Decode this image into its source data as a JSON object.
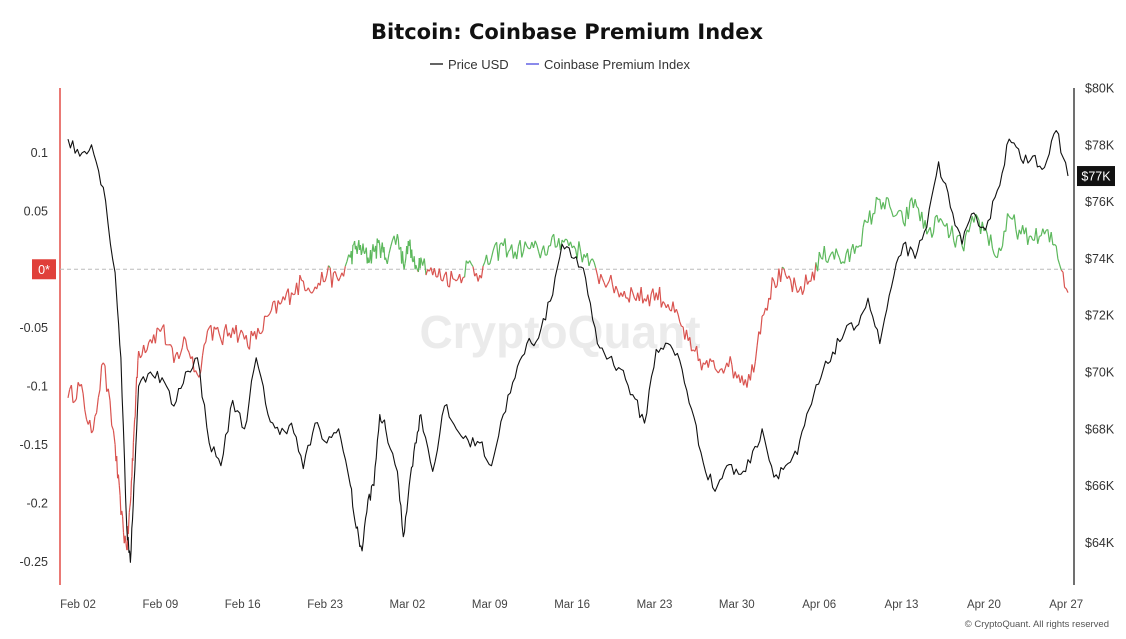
{
  "chart_data": {
    "type": "line",
    "title": "Bitcoin: Coinbase Premium Index",
    "legend": {
      "placement": "top-center",
      "items": [
        "Price USD",
        "Coinbase Premium Index"
      ]
    },
    "x_ticks": [
      "Feb 02",
      "Feb 09",
      "Feb 16",
      "Feb 23",
      "Mar 02",
      "Mar 09",
      "Mar 16",
      "Mar 23",
      "Mar 30",
      "Apr 06",
      "Apr 13",
      "Apr 20",
      "Apr 27"
    ],
    "x_range": [
      "Feb 02",
      "Apr 28"
    ],
    "y_left": {
      "ticks": [
        "0.1",
        "0.05",
        "0*",
        "-0.05",
        "-0.1",
        "-0.15",
        "-0.2",
        "-0.25"
      ],
      "tick_values": [
        0.1,
        0.05,
        0,
        -0.05,
        -0.1,
        -0.15,
        -0.2,
        -0.25
      ],
      "range": [
        -0.27,
        0.155
      ]
    },
    "y_right": {
      "ticks": [
        "$80K",
        "$78K",
        "$76K",
        "$74K",
        "$72K",
        "$70K",
        "$68K",
        "$66K",
        "$64K"
      ],
      "tick_values": [
        80000,
        78000,
        76000,
        74000,
        72000,
        70000,
        68000,
        66000,
        64000
      ],
      "range": [
        62500,
        80000
      ],
      "current_label": "$77K",
      "current_value": 76900
    },
    "grid": false,
    "zero_line": "dashed",
    "series": [
      {
        "name": "Price USD",
        "axis": "right",
        "color": "#111111",
        "points": [
          [
            "Feb 02",
            78200
          ],
          [
            "Feb 03",
            77600
          ],
          [
            "Feb 04",
            78000
          ],
          [
            "Feb 05",
            76500
          ],
          [
            "Feb 06",
            73500
          ],
          [
            "Feb 06.5",
            70500
          ],
          [
            "Feb 07",
            64500
          ],
          [
            "Feb 07.3",
            63300
          ],
          [
            "Feb 07.6",
            66000
          ],
          [
            "Feb 08",
            69500
          ],
          [
            "Feb 09",
            70000
          ],
          [
            "Feb 10",
            69800
          ],
          [
            "Feb 11",
            68800
          ],
          [
            "Feb 12",
            70000
          ],
          [
            "Feb 13",
            70500
          ],
          [
            "Feb 14",
            67500
          ],
          [
            "Feb 15",
            66700
          ],
          [
            "Feb 16",
            69000
          ],
          [
            "Feb 17",
            68000
          ],
          [
            "Feb 18",
            70500
          ],
          [
            "Feb 19",
            68500
          ],
          [
            "Feb 20",
            67800
          ],
          [
            "Feb 21",
            68200
          ],
          [
            "Feb 22",
            66600
          ],
          [
            "Feb 23",
            68200
          ],
          [
            "Feb 24",
            67500
          ],
          [
            "Feb 25",
            68000
          ],
          [
            "Feb 26",
            66000
          ],
          [
            "Feb 26.5",
            64500
          ],
          [
            "Feb 27",
            63700
          ],
          [
            "Feb 27.5",
            65500
          ],
          [
            "Feb 28",
            66000
          ],
          [
            "Feb 28.5",
            68500
          ],
          [
            "Mar 01",
            68000
          ],
          [
            "Mar 02",
            66500
          ],
          [
            "Mar 02.5",
            64200
          ],
          [
            "Mar 03",
            66000
          ],
          [
            "Mar 03.5",
            67500
          ],
          [
            "Mar 04",
            68500
          ],
          [
            "Mar 05",
            66500
          ],
          [
            "Mar 06",
            68800
          ],
          [
            "Mar 07",
            68000
          ],
          [
            "Mar 08",
            67600
          ],
          [
            "Mar 09",
            67500
          ],
          [
            "Mar 10",
            66700
          ],
          [
            "Mar 11",
            68500
          ],
          [
            "Mar 12",
            69800
          ],
          [
            "Mar 13",
            71000
          ],
          [
            "Mar 14",
            71200
          ],
          [
            "Mar 15",
            72500
          ],
          [
            "Mar 16",
            74500
          ],
          [
            "Mar 17",
            74000
          ],
          [
            "Mar 18",
            73300
          ],
          [
            "Mar 19",
            71000
          ],
          [
            "Mar 20",
            70500
          ],
          [
            "Mar 21",
            70100
          ],
          [
            "Mar 22",
            69200
          ],
          [
            "Mar 23",
            68200
          ],
          [
            "Mar 24",
            70800
          ],
          [
            "Mar 25",
            71000
          ],
          [
            "Mar 26",
            70400
          ],
          [
            "Mar 27",
            68700
          ],
          [
            "Mar 28",
            66800
          ],
          [
            "Mar 29",
            65800
          ],
          [
            "Mar 30",
            66700
          ],
          [
            "Mar 31",
            66400
          ],
          [
            "Apr 01",
            66800
          ],
          [
            "Apr 02",
            68000
          ],
          [
            "Apr 03",
            66300
          ],
          [
            "Apr 04",
            66700
          ],
          [
            "Apr 05",
            67100
          ],
          [
            "Apr 06",
            68700
          ],
          [
            "Apr 07",
            69800
          ],
          [
            "Apr 08",
            70700
          ],
          [
            "Apr 09",
            71400
          ],
          [
            "Apr 10",
            71600
          ],
          [
            "Apr 11",
            72600
          ],
          [
            "Apr 12",
            71000
          ],
          [
            "Apr 13",
            73000
          ],
          [
            "Apr 14",
            74500
          ],
          [
            "Apr 15",
            74000
          ],
          [
            "Apr 16",
            75100
          ],
          [
            "Apr 17",
            77400
          ],
          [
            "Apr 18",
            75800
          ],
          [
            "Apr 19",
            74500
          ],
          [
            "Apr 20",
            75600
          ],
          [
            "Apr 21",
            75000
          ],
          [
            "Apr 22",
            76400
          ],
          [
            "Apr 23",
            78200
          ],
          [
            "Apr 24",
            77500
          ],
          [
            "Apr 25",
            77600
          ],
          [
            "Apr 26",
            77200
          ],
          [
            "Apr 27",
            78500
          ],
          [
            "Apr 28",
            76900
          ]
        ]
      },
      {
        "name": "Coinbase Premium Index",
        "axis": "left",
        "color": "#4a4ae0",
        "positive_color": "#5cb85c",
        "negative_color": "#d9534f",
        "points": [
          [
            "Feb 02",
            -0.11
          ],
          [
            "Feb 03",
            -0.1
          ],
          [
            "Feb 04",
            -0.14
          ],
          [
            "Feb 05",
            -0.08
          ],
          [
            "Feb 06",
            -0.15
          ],
          [
            "Feb 06.5",
            -0.21
          ],
          [
            "Feb 07",
            -0.24
          ],
          [
            "Feb 07.3",
            -0.2
          ],
          [
            "Feb 07.6",
            -0.14
          ],
          [
            "Feb 08",
            -0.07
          ],
          [
            "Feb 09",
            -0.06
          ],
          [
            "Feb 10",
            -0.05
          ],
          [
            "Feb 11",
            -0.08
          ],
          [
            "Feb 12",
            -0.06
          ],
          [
            "Feb 13",
            -0.09
          ],
          [
            "Feb 14",
            -0.05
          ],
          [
            "Feb 15",
            -0.06
          ],
          [
            "Feb 16",
            -0.05
          ],
          [
            "Feb 17",
            -0.06
          ],
          [
            "Feb 18",
            -0.06
          ],
          [
            "Feb 19",
            -0.04
          ],
          [
            "Feb 20",
            -0.03
          ],
          [
            "Feb 21",
            -0.02
          ],
          [
            "Feb 22",
            -0.01
          ],
          [
            "Feb 23",
            -0.015
          ],
          [
            "Feb 24",
            -0.005
          ],
          [
            "Feb 25",
            -0.01
          ],
          [
            "Feb 26",
            0.01
          ],
          [
            "Feb 26.5",
            0.02
          ],
          [
            "Feb 27",
            0.015
          ],
          [
            "Feb 27.5",
            0.01
          ],
          [
            "Feb 28",
            0.015
          ],
          [
            "Feb 28.5",
            0.02
          ],
          [
            "Mar 01",
            0.01
          ],
          [
            "Mar 02",
            0.03
          ],
          [
            "Mar 02.5",
            0.005
          ],
          [
            "Mar 03",
            0.02
          ],
          [
            "Mar 03.5",
            0.0
          ],
          [
            "Mar 04",
            0.01
          ],
          [
            "Mar 05",
            -0.005
          ],
          [
            "Mar 06",
            -0.005
          ],
          [
            "Mar 07",
            -0.01
          ],
          [
            "Mar 08",
            0.005
          ],
          [
            "Mar 09",
            -0.005
          ],
          [
            "Mar 10",
            0.01
          ],
          [
            "Mar 11",
            0.02
          ],
          [
            "Mar 12",
            0.015
          ],
          [
            "Mar 13",
            0.02
          ],
          [
            "Mar 14",
            0.015
          ],
          [
            "Mar 15",
            0.02
          ],
          [
            "Mar 16",
            0.025
          ],
          [
            "Mar 17",
            0.02
          ],
          [
            "Mar 18",
            0.01
          ],
          [
            "Mar 19",
            -0.005
          ],
          [
            "Mar 20",
            -0.01
          ],
          [
            "Mar 21",
            -0.02
          ],
          [
            "Mar 22",
            -0.02
          ],
          [
            "Mar 23",
            -0.025
          ],
          [
            "Mar 24",
            -0.02
          ],
          [
            "Mar 25",
            -0.03
          ],
          [
            "Mar 26",
            -0.045
          ],
          [
            "Mar 27",
            -0.07
          ],
          [
            "Mar 28",
            -0.08
          ],
          [
            "Mar 29",
            -0.085
          ],
          [
            "Mar 30",
            -0.08
          ],
          [
            "Mar 31",
            -0.09
          ],
          [
            "Apr 01",
            -0.095
          ],
          [
            "Apr 02",
            -0.04
          ],
          [
            "Apr 03",
            -0.01
          ],
          [
            "Apr 04",
            -0.005
          ],
          [
            "Apr 05",
            -0.02
          ],
          [
            "Apr 06",
            -0.01
          ],
          [
            "Apr 07",
            0.01
          ],
          [
            "Apr 08",
            0.015
          ],
          [
            "Apr 09",
            0.005
          ],
          [
            "Apr 10",
            0.02
          ],
          [
            "Apr 11",
            0.04
          ],
          [
            "Apr 12",
            0.06
          ],
          [
            "Apr 13",
            0.05
          ],
          [
            "Apr 14",
            0.04
          ],
          [
            "Apr 15",
            0.06
          ],
          [
            "Apr 16",
            0.03
          ],
          [
            "Apr 17",
            0.04
          ],
          [
            "Apr 18",
            0.03
          ],
          [
            "Apr 19",
            0.02
          ],
          [
            "Apr 20",
            0.04
          ],
          [
            "Apr 21",
            0.035
          ],
          [
            "Apr 22",
            0.01
          ],
          [
            "Apr 23",
            0.045
          ],
          [
            "Apr 24",
            0.03
          ],
          [
            "Apr 25",
            0.025
          ],
          [
            "Apr 26",
            0.03
          ],
          [
            "Apr 27",
            0.02
          ],
          [
            "Apr 28",
            -0.02
          ]
        ]
      }
    ],
    "watermark": "CryptoQuant",
    "credit": "© CryptoQuant. All rights reserved"
  }
}
